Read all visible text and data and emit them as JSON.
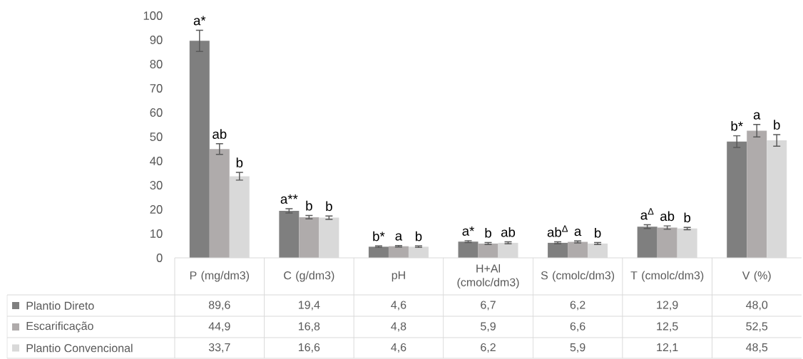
{
  "chart_data": {
    "type": "bar",
    "categories": [
      "P (mg/dm3)",
      "C (g/dm3)",
      "pH",
      "H+Al (cmolc/dm3)",
      "S (cmolc/dm3)",
      "T (cmolc/dm3)",
      "V (%)"
    ],
    "series": [
      {
        "name": "Plantio Direto",
        "color": "#7f7f7f",
        "values": [
          89.6,
          19.4,
          4.6,
          6.7,
          6.2,
          12.9,
          48.0
        ],
        "errors": [
          4.4,
          0.9,
          0.3,
          0.4,
          0.4,
          0.8,
          2.4
        ],
        "value_labels": [
          "89,6",
          "19,4",
          "4,6",
          "6,7",
          "6,2",
          "12,9",
          "48,0"
        ]
      },
      {
        "name": "Escarificação",
        "color": "#afabab",
        "values": [
          44.9,
          16.8,
          4.8,
          5.9,
          6.6,
          12.5,
          52.5
        ],
        "errors": [
          2.2,
          0.7,
          0.3,
          0.4,
          0.4,
          0.7,
          2.6
        ],
        "value_labels": [
          "44,9",
          "16,8",
          "4,8",
          "5,9",
          "6,6",
          "12,5",
          "52,5"
        ]
      },
      {
        "name": "Plantio Convencional",
        "color": "#d9d9d9",
        "values": [
          33.7,
          16.6,
          4.6,
          6.2,
          5.9,
          12.1,
          48.5
        ],
        "errors": [
          1.6,
          0.7,
          0.3,
          0.4,
          0.4,
          0.5,
          2.4
        ],
        "value_labels": [
          "33,7",
          "16,6",
          "4,6",
          "6,2",
          "5,9",
          "12,1",
          "48,5"
        ]
      }
    ],
    "ylim": [
      0,
      100
    ],
    "yticks": [
      0,
      10,
      20,
      30,
      40,
      50,
      60,
      70,
      80,
      90,
      100
    ],
    "legend": "bottom left",
    "annotations": [
      "a*",
      "ab",
      "b",
      "a**",
      "b",
      "b",
      "b*",
      "a",
      "b",
      "a*",
      "b",
      "ab",
      "ab$^{Δ}$",
      "a",
      "b",
      "a$^{Δ}$",
      "ab",
      "b",
      "b*",
      "a",
      "b"
    ]
  }
}
